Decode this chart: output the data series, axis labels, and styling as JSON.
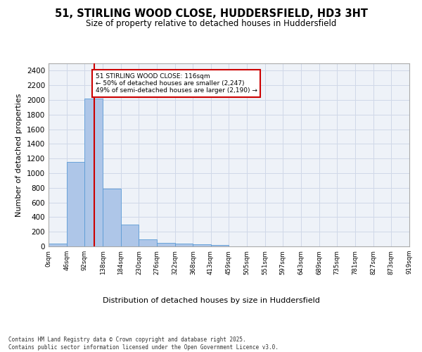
{
  "title_line1": "51, STIRLING WOOD CLOSE, HUDDERSFIELD, HD3 3HT",
  "title_line2": "Size of property relative to detached houses in Huddersfield",
  "xlabel": "Distribution of detached houses by size in Huddersfield",
  "ylabel": "Number of detached properties",
  "footnote1": "Contains HM Land Registry data © Crown copyright and database right 2025.",
  "footnote2": "Contains public sector information licensed under the Open Government Licence v3.0.",
  "bar_color": "#aec6e8",
  "bar_edge_color": "#5b9bd5",
  "grid_color": "#d0d8e8",
  "background_color": "#eef2f8",
  "vline_color": "#cc0000",
  "annotation_box_color": "#cc0000",
  "annotation_text": "51 STIRLING WOOD CLOSE: 116sqm\n← 50% of detached houses are smaller (2,247)\n49% of semi-detached houses are larger (2,190) →",
  "property_size": 116,
  "bin_edges": [
    0,
    46,
    92,
    138,
    184,
    230,
    276,
    322,
    368,
    413,
    459,
    505,
    551,
    597,
    643,
    689,
    735,
    781,
    827,
    873,
    919
  ],
  "bin_labels": [
    "0sqm",
    "46sqm",
    "92sqm",
    "138sqm",
    "184sqm",
    "230sqm",
    "276sqm",
    "322sqm",
    "368sqm",
    "413sqm",
    "459sqm",
    "505sqm",
    "551sqm",
    "597sqm",
    "643sqm",
    "689sqm",
    "735sqm",
    "781sqm",
    "827sqm",
    "873sqm",
    "919sqm"
  ],
  "bar_heights": [
    35,
    1150,
    2020,
    790,
    300,
    100,
    45,
    40,
    25,
    15,
    0,
    0,
    0,
    0,
    0,
    0,
    0,
    0,
    0,
    0
  ],
  "ylim": [
    0,
    2500
  ],
  "yticks": [
    0,
    200,
    400,
    600,
    800,
    1000,
    1200,
    1400,
    1600,
    1800,
    2000,
    2200,
    2400
  ]
}
